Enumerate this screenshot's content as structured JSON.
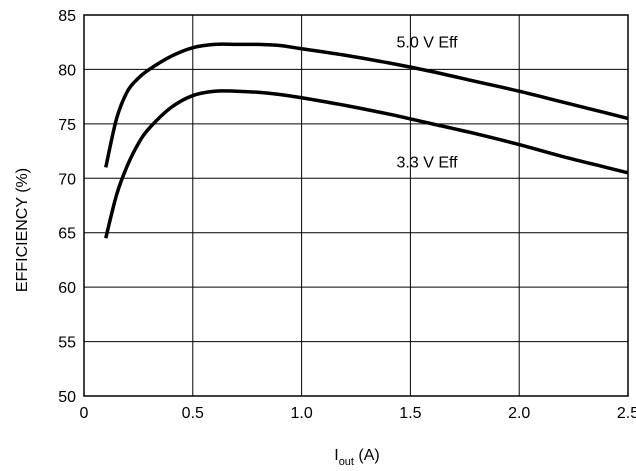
{
  "chart_data": {
    "type": "line",
    "xlabel": {
      "main": "I",
      "sub": "out",
      "unit": " (A)"
    },
    "ylabel": "EFFICIENCY (%)",
    "xlim": [
      0,
      2.5
    ],
    "ylim": [
      50,
      85
    ],
    "xticks": [
      0,
      0.5,
      1.0,
      1.5,
      2.0,
      2.5
    ],
    "xtick_labels": [
      "0",
      "0.5",
      "1.0",
      "1.5",
      "2.0",
      "2.5"
    ],
    "yticks": [
      50,
      55,
      60,
      65,
      70,
      75,
      80,
      85
    ],
    "ytick_labels": [
      "50",
      "55",
      "60",
      "65",
      "70",
      "75",
      "80",
      "85"
    ],
    "grid": true,
    "series": [
      {
        "name": "5.0 V Eff",
        "x": [
          0.1,
          0.15,
          0.2,
          0.25,
          0.3,
          0.4,
          0.5,
          0.6,
          0.7,
          0.8,
          0.9,
          1.0,
          1.2,
          1.4,
          1.6,
          1.8,
          2.0,
          2.2,
          2.4,
          2.5
        ],
        "y": [
          71.0,
          75.5,
          78.0,
          79.2,
          80.0,
          81.2,
          82.0,
          82.3,
          82.3,
          82.3,
          82.2,
          81.9,
          81.3,
          80.6,
          79.8,
          78.9,
          78.0,
          77.0,
          76.0,
          75.5
        ]
      },
      {
        "name": "3.3 V Eff",
        "x": [
          0.1,
          0.15,
          0.2,
          0.25,
          0.3,
          0.4,
          0.5,
          0.6,
          0.7,
          0.8,
          0.9,
          1.0,
          1.2,
          1.4,
          1.6,
          1.8,
          2.0,
          2.2,
          2.4,
          2.5
        ],
        "y": [
          64.5,
          68.5,
          71.2,
          73.2,
          74.6,
          76.5,
          77.6,
          78.0,
          78.0,
          77.9,
          77.7,
          77.4,
          76.7,
          75.9,
          75.0,
          74.1,
          73.1,
          72.0,
          71.0,
          70.5
        ]
      }
    ],
    "annotations": [
      {
        "text": "5.0 V Eff",
        "x": 1.45,
        "y": 82.0
      },
      {
        "text": "3.3 V Eff",
        "x": 1.45,
        "y": 71.0
      }
    ]
  }
}
